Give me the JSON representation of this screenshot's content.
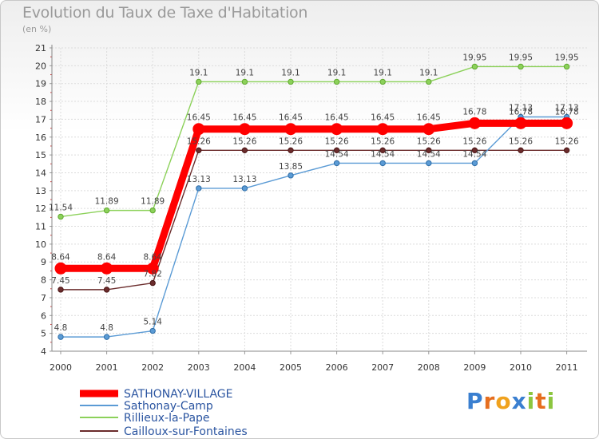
{
  "chart_data": {
    "type": "line",
    "title": "Evolution du Taux de Taxe d'Habitation",
    "subtitle": "(en %)",
    "x": [
      "2000",
      "2001",
      "2002",
      "2003",
      "2004",
      "2005",
      "2006",
      "2007",
      "2008",
      "2009",
      "2010",
      "2011"
    ],
    "ylim": [
      4,
      21
    ],
    "yticks": [
      4,
      5,
      6,
      7,
      8,
      9,
      10,
      11,
      12,
      13,
      14,
      15,
      16,
      17,
      18,
      19,
      20,
      21
    ],
    "grid": true,
    "legend_position": "bottom-left",
    "series": [
      {
        "name": "SATHONAY-VILLAGE",
        "color": "#ff0000",
        "values": [
          8.64,
          8.64,
          8.64,
          16.45,
          16.45,
          16.45,
          16.45,
          16.45,
          16.45,
          16.78,
          16.78,
          16.78
        ],
        "labels": [
          "8.64",
          "8.64",
          "8.64",
          "16.45",
          "16.45",
          "16.45",
          "16.45",
          "16.45",
          "16.45",
          "16.78",
          "16.78",
          "16.78"
        ]
      },
      {
        "name": "Sathonay-Camp",
        "color": "#5b9bd5",
        "values": [
          4.8,
          4.8,
          5.14,
          13.13,
          13.13,
          13.85,
          14.54,
          14.54,
          14.54,
          14.54,
          17.13,
          17.13
        ],
        "labels": [
          "4.8",
          "4.8",
          "5.14",
          "13.13",
          "13.13",
          "13.85",
          "14.54",
          "14.54",
          "14.54",
          "14.54",
          "17.13",
          "17.13"
        ]
      },
      {
        "name": "Rillieux-la-Pape",
        "color": "#8cd15a",
        "values": [
          11.54,
          11.89,
          11.89,
          19.1,
          19.1,
          19.1,
          19.1,
          19.1,
          19.1,
          19.95,
          19.95,
          19.95
        ],
        "labels": [
          "11.54",
          "11.89",
          "11.89",
          "19.1",
          "19.1",
          "19.1",
          "19.1",
          "19.1",
          "19.1",
          "19.95",
          "19.95",
          "19.95"
        ]
      },
      {
        "name": "Cailloux-sur-Fontaines",
        "color": "#6b2c2c",
        "values": [
          7.45,
          7.45,
          7.82,
          15.26,
          15.26,
          15.26,
          15.26,
          15.26,
          15.26,
          15.26,
          15.26,
          15.26
        ],
        "labels": [
          "7.45",
          "7.45",
          "7.82",
          "15.26",
          "15.26",
          "15.26",
          "15.26",
          "15.26",
          "15.26",
          "15.26",
          "15.26",
          "15.26"
        ]
      }
    ]
  },
  "logo": {
    "text": "Proxiti",
    "letters": [
      "P",
      "r",
      "o",
      "x",
      "i",
      "t",
      "i"
    ],
    "colors": [
      "#3a7fd0",
      "#e66e1e",
      "#f0a21e",
      "#3a7fd0",
      "#8cc63f",
      "#e66e1e",
      "#8cc63f"
    ]
  }
}
